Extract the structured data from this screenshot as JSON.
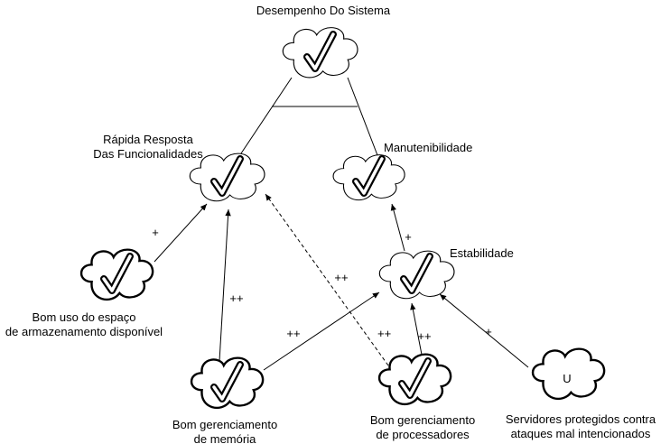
{
  "nodes": [
    {
      "id": "desempenho",
      "label": [
        "Desempenho Do Sistema"
      ],
      "mark": "check",
      "style": "normal"
    },
    {
      "id": "rapida",
      "label": [
        "Rápida Resposta",
        "Das Funcionalidades"
      ],
      "mark": "check",
      "style": "normal"
    },
    {
      "id": "manut",
      "label": [
        "Manutenibilidade"
      ],
      "mark": "check",
      "style": "normal"
    },
    {
      "id": "estab",
      "label": [
        "Estabilidade"
      ],
      "mark": "check",
      "style": "normal"
    },
    {
      "id": "espaco",
      "label": [
        "Bom uso do espaço",
        "de armazenamento disponível"
      ],
      "mark": "check",
      "style": "bold"
    },
    {
      "id": "memoria",
      "label": [
        "Bom gerenciamento",
        "de memória"
      ],
      "mark": "check",
      "style": "bold"
    },
    {
      "id": "process",
      "label": [
        "Bom gerenciamento",
        "de processadores"
      ],
      "mark": "check",
      "style": "bold"
    },
    {
      "id": "servidores",
      "label": [
        "Servidores protegidos contra",
        "ataques mal intencionados"
      ],
      "mark": "U",
      "style": "bold"
    }
  ],
  "decomposition": {
    "type": "AND",
    "parent": "desempenho",
    "children": [
      "rapida",
      "manut"
    ]
  },
  "contributions": [
    {
      "from": "espaco",
      "to": "rapida",
      "label": "+",
      "dashed": false
    },
    {
      "from": "memoria",
      "to": "rapida",
      "label": "++",
      "dashed": false
    },
    {
      "from": "process",
      "to": "rapida",
      "label": "++",
      "dashed": true
    },
    {
      "from": "memoria",
      "to": "estab",
      "label": "++",
      "dashed": false
    },
    {
      "from": "process",
      "to": "estab",
      "label": "++",
      "dashed": false
    },
    {
      "from": "servidores",
      "to": "estab",
      "label": "+",
      "dashed": false
    },
    {
      "from": "estab",
      "to": "manut",
      "label": "+",
      "dashed": false
    }
  ],
  "extra_labels": [
    {
      "text": "++",
      "near": "process"
    }
  ]
}
